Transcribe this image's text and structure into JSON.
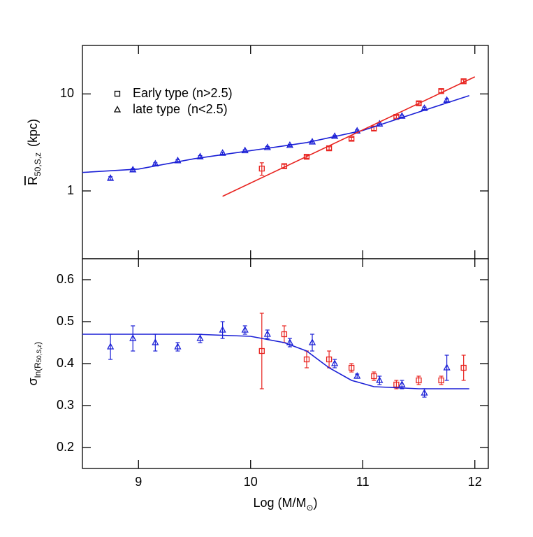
{
  "chart_data": [
    {
      "type": "scatter",
      "log_y": true,
      "ylabel": {
        "main": "R",
        "sub": "50,S,z",
        "unit": "(kpc)"
      },
      "xlim": [
        8.5,
        12.12
      ],
      "xticks": [
        9,
        10,
        11,
        12
      ],
      "ylim": [
        0.2,
        31.6
      ],
      "yticks": [
        1,
        10
      ],
      "legend": "upper left",
      "series": [
        {
          "name": "Early type (n>2.5)",
          "color": "#e8231f",
          "marker": "square",
          "style": "points",
          "x": [
            10.1,
            10.3,
            10.5,
            10.7,
            10.9,
            11.1,
            11.3,
            11.5,
            11.7,
            11.9
          ],
          "values": [
            1.7,
            1.8,
            2.25,
            2.75,
            3.45,
            4.4,
            5.8,
            8.0,
            10.7,
            13.5
          ],
          "errors": [
            0.25,
            0.08,
            0.08,
            0.1,
            0.12,
            0.2,
            0.2,
            0.3,
            0.4,
            0.5
          ]
        },
        {
          "name": "late type  (n<2.5)",
          "color": "#1a1fd6",
          "marker": "triangle",
          "style": "points",
          "x": [
            8.75,
            8.95,
            9.15,
            9.35,
            9.55,
            9.75,
            9.95,
            10.15,
            10.35,
            10.55,
            10.75,
            10.95,
            11.15,
            11.35,
            11.55,
            11.75
          ],
          "values": [
            1.35,
            1.65,
            1.9,
            2.05,
            2.25,
            2.45,
            2.6,
            2.8,
            2.95,
            3.2,
            3.65,
            4.15,
            4.9,
            5.9,
            7.1,
            8.6
          ],
          "errors": [
            0.05,
            0.05,
            0.05,
            0.05,
            0.06,
            0.06,
            0.06,
            0.07,
            0.07,
            0.08,
            0.08,
            0.1,
            0.1,
            0.15,
            0.2,
            0.3
          ]
        },
        {
          "color": "#1a1fd6",
          "style": "line",
          "x": [
            8.5,
            9.0,
            9.5,
            10.0,
            10.5,
            11.0,
            11.5,
            11.95
          ],
          "values": [
            1.55,
            1.68,
            2.15,
            2.6,
            3.15,
            4.2,
            6.5,
            9.6
          ]
        },
        {
          "color": "#e8231f",
          "style": "line",
          "x": [
            9.75,
            12.0
          ],
          "values": [
            0.88,
            15
          ]
        }
      ]
    },
    {
      "type": "scatter",
      "log_y": false,
      "ylabel": {
        "main": "σ",
        "sub": "ln(R",
        "subsub": "50,S,z",
        "close": ")"
      },
      "xlabel": {
        "main": "Log (M/M",
        "sub": "⊙",
        "close": ")"
      },
      "xlim": [
        8.5,
        12.12
      ],
      "xticks": [
        9,
        10,
        11,
        12
      ],
      "ylim": [
        0.15,
        0.65
      ],
      "yticks": [
        0.2,
        0.3,
        0.4,
        0.5,
        0.6
      ],
      "series": [
        {
          "color": "#e8231f",
          "marker": "square",
          "style": "points",
          "x": [
            10.1,
            10.3,
            10.5,
            10.7,
            10.9,
            11.1,
            11.3,
            11.5,
            11.7,
            11.9
          ],
          "values": [
            0.43,
            0.47,
            0.41,
            0.41,
            0.39,
            0.37,
            0.35,
            0.36,
            0.36,
            0.39
          ],
          "errors": [
            0.09,
            0.02,
            0.02,
            0.02,
            0.01,
            0.01,
            0.01,
            0.01,
            0.01,
            0.03
          ]
        },
        {
          "color": "#1a1fd6",
          "marker": "triangle",
          "style": "points",
          "x": [
            8.75,
            8.95,
            9.15,
            9.35,
            9.55,
            9.75,
            9.95,
            10.15,
            10.35,
            10.55,
            10.75,
            10.95,
            11.15,
            11.35,
            11.55,
            11.75
          ],
          "values": [
            0.44,
            0.46,
            0.45,
            0.44,
            0.46,
            0.48,
            0.48,
            0.47,
            0.45,
            0.45,
            0.4,
            0.37,
            0.36,
            0.35,
            0.33,
            0.39
          ],
          "errors": [
            0.03,
            0.03,
            0.02,
            0.01,
            0.01,
            0.02,
            0.01,
            0.01,
            0.01,
            0.02,
            0.01,
            0.005,
            0.01,
            0.01,
            0.01,
            0.03
          ]
        },
        {
          "color": "#1a1fd6",
          "style": "line",
          "x": [
            8.5,
            9.5,
            10.0,
            10.3,
            10.5,
            10.7,
            10.9,
            11.1,
            11.5,
            11.95
          ],
          "values": [
            0.47,
            0.47,
            0.465,
            0.45,
            0.43,
            0.39,
            0.36,
            0.345,
            0.34,
            0.34
          ]
        }
      ]
    }
  ]
}
